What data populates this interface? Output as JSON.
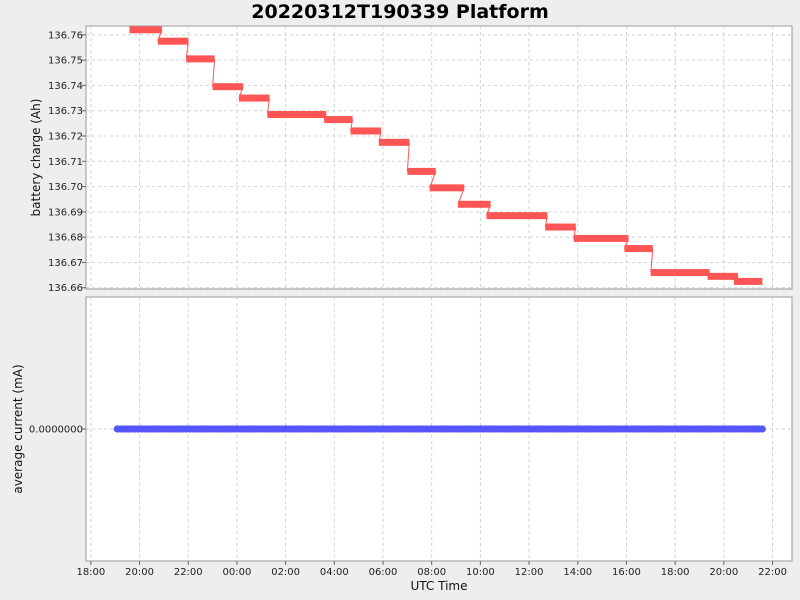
{
  "chart_data": [
    {
      "type": "line",
      "title": "20220312T190339 Platform",
      "xlabel": "UTC Time",
      "ylabel": "battery charge (Ah)",
      "x_ticks": [
        "18:00",
        "20:00",
        "22:00",
        "00:00",
        "02:00",
        "04:00",
        "06:00",
        "08:00",
        "10:00",
        "12:00",
        "14:00",
        "16:00",
        "18:00",
        "20:00",
        "22:00"
      ],
      "xlim": [
        "2022-03-12 17:48",
        "2022-03-13 22:48"
      ],
      "y_ticks": [
        "136.76",
        "136.75",
        "136.74",
        "136.73",
        "136.72",
        "136.71",
        "136.70",
        "136.69",
        "136.68",
        "136.67",
        "136.66"
      ],
      "ylim": [
        136.6595,
        136.7635
      ],
      "grid": true,
      "series": [
        {
          "color": "#ff5555",
          "segments": [
            {
              "start": "2022-03-12 19:35",
              "end": "2022-03-12 20:55",
              "y": 136.762
            },
            {
              "start": "2022-03-12 20:45",
              "end": "2022-03-12 22:00",
              "y": 136.7575
            },
            {
              "start": "2022-03-12 21:55",
              "end": "2022-03-12 23:05",
              "y": 136.7505
            },
            {
              "start": "2022-03-12 23:00",
              "end": "2022-03-13 00:15",
              "y": 136.7395
            },
            {
              "start": "2022-03-13 00:05",
              "end": "2022-03-13 01:20",
              "y": 136.735
            },
            {
              "start": "2022-03-13 01:15",
              "end": "2022-03-13 03:40",
              "y": 136.7285
            },
            {
              "start": "2022-03-13 03:35",
              "end": "2022-03-13 04:45",
              "y": 136.7265
            },
            {
              "start": "2022-03-13 04:40",
              "end": "2022-03-13 05:55",
              "y": 136.722
            },
            {
              "start": "2022-03-13 05:50",
              "end": "2022-03-13 07:05",
              "y": 136.7175
            },
            {
              "start": "2022-03-13 07:00",
              "end": "2022-03-13 08:10",
              "y": 136.706
            },
            {
              "start": "2022-03-13 07:55",
              "end": "2022-03-13 09:20",
              "y": 136.6995
            },
            {
              "start": "2022-03-13 09:05",
              "end": "2022-03-13 10:25",
              "y": 136.693
            },
            {
              "start": "2022-03-13 10:15",
              "end": "2022-03-13 12:45",
              "y": 136.6885
            },
            {
              "start": "2022-03-13 12:40",
              "end": "2022-03-13 13:55",
              "y": 136.684
            },
            {
              "start": "2022-03-13 13:50",
              "end": "2022-03-13 16:05",
              "y": 136.6795
            },
            {
              "start": "2022-03-13 15:55",
              "end": "2022-03-13 17:05",
              "y": 136.6755
            },
            {
              "start": "2022-03-13 17:00",
              "end": "2022-03-13 19:25",
              "y": 136.666
            },
            {
              "start": "2022-03-13 19:20",
              "end": "2022-03-13 20:35",
              "y": 136.6645
            },
            {
              "start": "2022-03-13 20:25",
              "end": "2022-03-13 21:35",
              "y": 136.6625
            }
          ]
        }
      ]
    },
    {
      "type": "scatter",
      "xlabel": "UTC Time",
      "ylabel": "average current (mA)",
      "y_ticks": [
        "0.0000000"
      ],
      "ylim": [
        -1,
        1
      ],
      "grid": true,
      "series": [
        {
          "color": "#5555ff",
          "x_range": [
            "2022-03-12 19:05",
            "2022-03-13 21:35"
          ],
          "y": 0.0
        }
      ]
    }
  ]
}
